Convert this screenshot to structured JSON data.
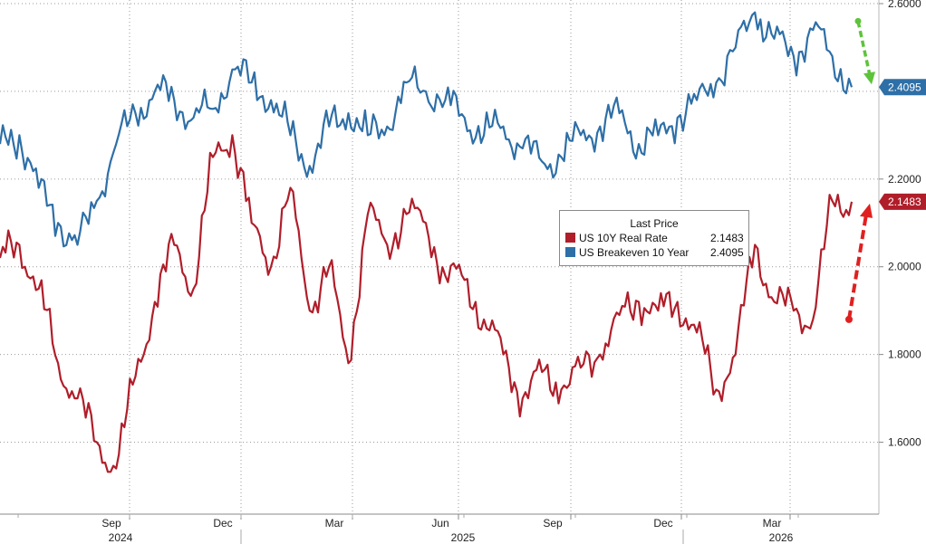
{
  "chart_data": {
    "type": "line",
    "title": "",
    "xlabel": "",
    "ylabel": "",
    "ylim": [
      1.5,
      2.6
    ],
    "y_ticks": [
      "1.6000",
      "1.8000",
      "2.0000",
      "2.2000",
      "2.6000"
    ],
    "x_month_ticks": [
      "Sep",
      "Dec",
      "Mar",
      "Jun",
      "Sep",
      "Dec",
      "Mar"
    ],
    "x_year_labels": [
      "2024",
      "2025",
      "2026"
    ],
    "grid": true,
    "legend": {
      "title": "Last Price",
      "placement": "center-right",
      "entries": [
        {
          "name": "US 10Y Real Rate",
          "value": "2.1483",
          "color": "#b01e2a"
        },
        {
          "name": "US Breakeven 10 Year",
          "value": "2.4095",
          "color": "#2e6fa7"
        }
      ]
    },
    "last_value_tags": [
      {
        "series": "US Breakeven 10 Year",
        "value": "2.4095",
        "color": "#2e6fa7"
      },
      {
        "series": "US 10Y Real Rate",
        "value": "2.1483",
        "color": "#b01e2a"
      }
    ],
    "x_dates": [
      "2024-07",
      "2024-07-15",
      "2024-08",
      "2024-08-15",
      "2024-09",
      "2024-09-15",
      "2024-10",
      "2024-10-15",
      "2024-11",
      "2024-11-15",
      "2024-12",
      "2024-12-15",
      "2025-01",
      "2025-01-15",
      "2025-02",
      "2025-02-15",
      "2025-03",
      "2025-03-15",
      "2025-04",
      "2025-04-15",
      "2025-05",
      "2025-05-15",
      "2025-06",
      "2025-06-15",
      "2025-07",
      "2025-07-15",
      "2025-08",
      "2025-08-15",
      "2025-09",
      "2025-09-15",
      "2025-10",
      "2025-10-15",
      "2025-11",
      "2025-11-15",
      "2025-12",
      "2025-12-15",
      "2026-01",
      "2026-01-15",
      "2026-02",
      "2026-02-15",
      "2026-03",
      "2026-03-15",
      "2026-04",
      "2026-04-15",
      "2026-05"
    ],
    "series": [
      {
        "name": "US 10Y Real Rate",
        "color": "#b01e2a",
        "values": [
          2.02,
          2.05,
          1.95,
          1.78,
          1.7,
          1.6,
          1.54,
          1.75,
          1.92,
          2.05,
          1.95,
          2.25,
          2.3,
          2.1,
          2.0,
          2.18,
          1.9,
          2.0,
          1.78,
          2.12,
          2.05,
          2.12,
          2.1,
          1.98,
          1.97,
          1.88,
          1.8,
          1.7,
          1.76,
          1.72,
          1.77,
          1.8,
          1.89,
          1.92,
          1.9,
          1.92,
          1.85,
          1.72,
          1.8,
          2.05,
          1.92,
          1.9,
          1.88,
          2.15,
          2.1483
        ]
      },
      {
        "name": "US Breakeven 10 Year",
        "color": "#2e6fa7",
        "values": [
          2.28,
          2.3,
          2.18,
          2.1,
          2.05,
          2.15,
          2.28,
          2.35,
          2.4,
          2.38,
          2.34,
          2.36,
          2.45,
          2.42,
          2.38,
          2.3,
          2.23,
          2.32,
          2.35,
          2.3,
          2.32,
          2.42,
          2.4,
          2.38,
          2.34,
          2.3,
          2.32,
          2.27,
          2.24,
          2.25,
          2.3,
          2.32,
          2.35,
          2.28,
          2.3,
          2.34,
          2.38,
          2.42,
          2.5,
          2.58,
          2.52,
          2.48,
          2.54,
          2.48,
          2.4095
        ]
      }
    ],
    "annotations": [
      {
        "type": "arrow",
        "direction": "down",
        "color": "#5dc43a",
        "series": "US Breakeven 10 Year"
      },
      {
        "type": "arrow",
        "direction": "up",
        "color": "#e02020",
        "series": "US 10Y Real Rate"
      }
    ]
  }
}
